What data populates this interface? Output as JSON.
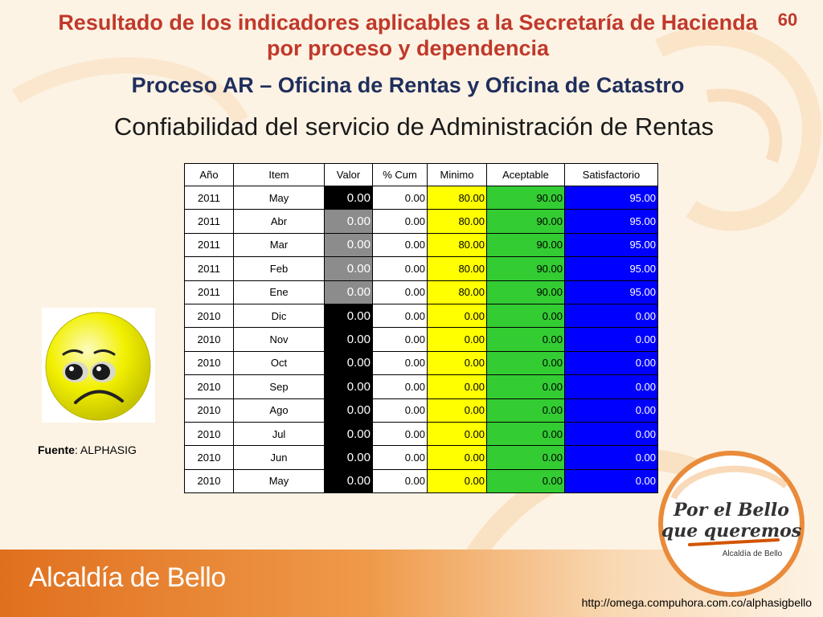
{
  "slide_number": "60",
  "title": "Resultado de los indicadores aplicables a la Secretaría de Hacienda por proceso y dependencia",
  "subtitle": "Proceso AR – Oficina de Rentas y Oficina de Catastro",
  "heading": "Confiabilidad del servicio de Administración de Rentas",
  "table": {
    "headers": [
      "Año",
      "Item",
      "Valor",
      "% Cum",
      "Minimo",
      "Aceptable",
      "Satisfactorio"
    ],
    "rows": [
      {
        "anio": "2011",
        "item": "May",
        "valor": "0.00",
        "cum": "0.00",
        "minimo": "80.00",
        "aceptable": "90.00",
        "satisfactorio": "95.00",
        "valor_bg": "#000000"
      },
      {
        "anio": "2011",
        "item": "Abr",
        "valor": "0.00",
        "cum": "0.00",
        "minimo": "80.00",
        "aceptable": "90.00",
        "satisfactorio": "95.00",
        "valor_bg": "#8c8c8c"
      },
      {
        "anio": "2011",
        "item": "Mar",
        "valor": "0.00",
        "cum": "0.00",
        "minimo": "80.00",
        "aceptable": "90.00",
        "satisfactorio": "95.00",
        "valor_bg": "#8c8c8c"
      },
      {
        "anio": "2011",
        "item": "Feb",
        "valor": "0.00",
        "cum": "0.00",
        "minimo": "80.00",
        "aceptable": "90.00",
        "satisfactorio": "95.00",
        "valor_bg": "#8c8c8c"
      },
      {
        "anio": "2011",
        "item": "Ene",
        "valor": "0.00",
        "cum": "0.00",
        "minimo": "80.00",
        "aceptable": "90.00",
        "satisfactorio": "95.00",
        "valor_bg": "#8c8c8c"
      },
      {
        "anio": "2010",
        "item": "Dic",
        "valor": "0.00",
        "cum": "0.00",
        "minimo": "0.00",
        "aceptable": "0.00",
        "satisfactorio": "0.00",
        "valor_bg": "#000000"
      },
      {
        "anio": "2010",
        "item": "Nov",
        "valor": "0.00",
        "cum": "0.00",
        "minimo": "0.00",
        "aceptable": "0.00",
        "satisfactorio": "0.00",
        "valor_bg": "#000000"
      },
      {
        "anio": "2010",
        "item": "Oct",
        "valor": "0.00",
        "cum": "0.00",
        "minimo": "0.00",
        "aceptable": "0.00",
        "satisfactorio": "0.00",
        "valor_bg": "#000000"
      },
      {
        "anio": "2010",
        "item": "Sep",
        "valor": "0.00",
        "cum": "0.00",
        "minimo": "0.00",
        "aceptable": "0.00",
        "satisfactorio": "0.00",
        "valor_bg": "#000000"
      },
      {
        "anio": "2010",
        "item": "Ago",
        "valor": "0.00",
        "cum": "0.00",
        "minimo": "0.00",
        "aceptable": "0.00",
        "satisfactorio": "0.00",
        "valor_bg": "#000000"
      },
      {
        "anio": "2010",
        "item": "Jul",
        "valor": "0.00",
        "cum": "0.00",
        "minimo": "0.00",
        "aceptable": "0.00",
        "satisfactorio": "0.00",
        "valor_bg": "#000000"
      },
      {
        "anio": "2010",
        "item": "Jun",
        "valor": "0.00",
        "cum": "0.00",
        "minimo": "0.00",
        "aceptable": "0.00",
        "satisfactorio": "0.00",
        "valor_bg": "#000000"
      },
      {
        "anio": "2010",
        "item": "May",
        "valor": "0.00",
        "cum": "0.00",
        "minimo": "0.00",
        "aceptable": "0.00",
        "satisfactorio": "0.00",
        "valor_bg": "#000000"
      }
    ],
    "colors": {
      "minimo": "#ffff00",
      "aceptable": "#33cc33",
      "satisfactorio": "#0000ff",
      "cum": "#ffffff"
    }
  },
  "smiley_icon": "sad-face-icon",
  "source": {
    "label": "Fuente",
    "value": ": ALPHASIG"
  },
  "footer": {
    "org_name": "Alcaldía de Bello",
    "url": "http://omega.compuhora.com.co/alphasigbello"
  },
  "logo": {
    "line1": "Por el Bello",
    "line2": "que queremos",
    "line3": "Alcaldía de Bello"
  }
}
